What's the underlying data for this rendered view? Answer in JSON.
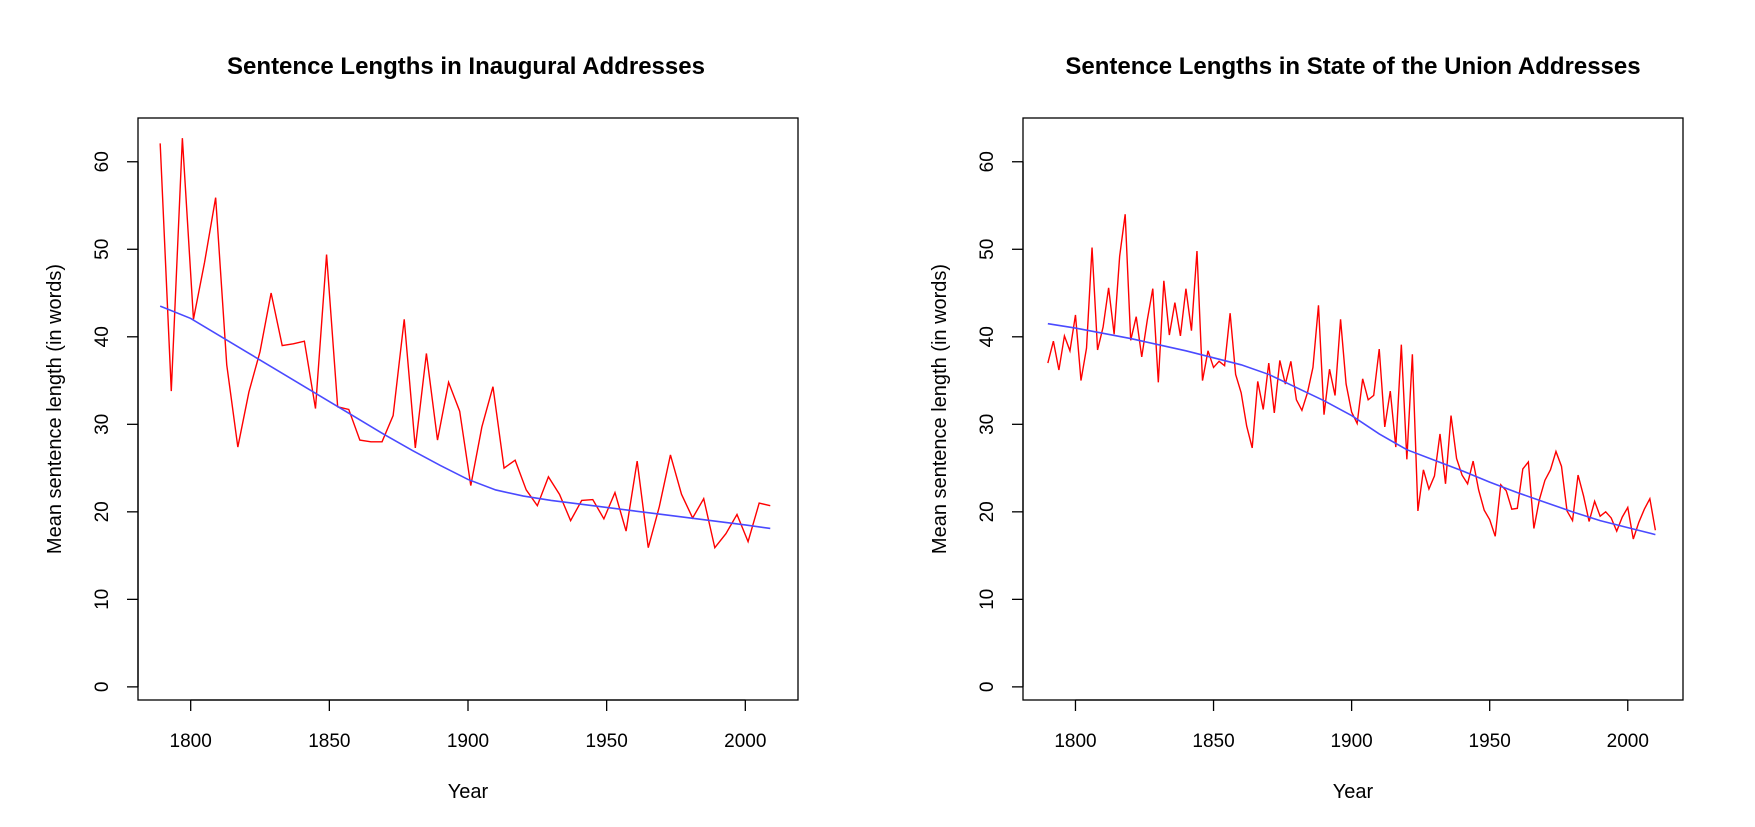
{
  "chart_data": [
    {
      "type": "line",
      "title": "Sentence Lengths in Inaugural Addresses",
      "xlabel": "Year",
      "ylabel": "Mean sentence length (in words)",
      "xlim": [
        1781,
        2019
      ],
      "ylim": [
        -1.5,
        65
      ],
      "xticks": [
        1800,
        1850,
        1900,
        1950,
        2000
      ],
      "yticks": [
        0,
        10,
        20,
        30,
        40,
        50,
        60
      ],
      "grid": false,
      "colors": {
        "raw": "#ff0000",
        "smooth": "#4a4aff"
      },
      "series": [
        {
          "style": "raw",
          "x": [
            1789,
            1793,
            1797,
            1801,
            1805,
            1809,
            1813,
            1817,
            1821,
            1825,
            1829,
            1833,
            1837,
            1841,
            1845,
            1849,
            1853,
            1857,
            1861,
            1865,
            1869,
            1873,
            1877,
            1881,
            1885,
            1889,
            1893,
            1897,
            1901,
            1905,
            1909,
            1913,
            1917,
            1921,
            1925,
            1929,
            1933,
            1937,
            1941,
            1945,
            1949,
            1953,
            1957,
            1961,
            1965,
            1969,
            1973,
            1977,
            1981,
            1985,
            1989,
            1993,
            1997,
            2001,
            2005,
            2009
          ],
          "y": [
            62.1,
            33.8,
            62.7,
            42.0,
            48.5,
            55.9,
            36.8,
            27.4,
            33.7,
            38.3,
            45.0,
            39.0,
            39.2,
            39.5,
            31.8,
            49.4,
            32.0,
            31.7,
            28.2,
            28.0,
            28.0,
            31.0,
            42.0,
            27.3,
            38.1,
            28.2,
            34.8,
            31.5,
            23.0,
            29.7,
            34.3,
            25.0,
            25.9,
            22.5,
            20.7,
            24.0,
            22.0,
            19.0,
            21.3,
            21.4,
            19.2,
            22.2,
            17.8,
            25.8,
            15.9,
            20.6,
            26.5,
            22.0,
            19.3,
            21.5,
            15.9,
            17.5,
            19.7,
            16.6,
            21.0,
            20.7
          ]
        },
        {
          "style": "smooth",
          "x": [
            1789,
            1800,
            1810,
            1820,
            1830,
            1840,
            1850,
            1860,
            1870,
            1880,
            1890,
            1900,
            1910,
            1920,
            1930,
            1940,
            1950,
            1960,
            1970,
            1980,
            1990,
            2000,
            2009
          ],
          "y": [
            43.5,
            42.1,
            40.2,
            38.3,
            36.4,
            34.5,
            32.6,
            30.7,
            28.8,
            27.0,
            25.3,
            23.7,
            22.5,
            21.8,
            21.3,
            20.9,
            20.5,
            20.1,
            19.7,
            19.3,
            18.9,
            18.5,
            18.1
          ]
        }
      ]
    },
    {
      "type": "line",
      "title": "Sentence Lengths in State of the Union Addresses",
      "xlabel": "Year",
      "ylabel": "Mean sentence length (in words)",
      "xlim": [
        1781,
        2020
      ],
      "ylim": [
        -1.5,
        65
      ],
      "xticks": [
        1800,
        1850,
        1900,
        1950,
        2000
      ],
      "yticks": [
        0,
        10,
        20,
        30,
        40,
        50,
        60
      ],
      "grid": false,
      "colors": {
        "raw": "#ff0000",
        "smooth": "#4a4aff"
      },
      "series": [
        {
          "style": "raw",
          "x": [
            1790,
            1792,
            1794,
            1796,
            1798,
            1800,
            1802,
            1804,
            1806,
            1808,
            1810,
            1812,
            1814,
            1816,
            1818,
            1820,
            1822,
            1824,
            1826,
            1828,
            1830,
            1832,
            1834,
            1836,
            1838,
            1840,
            1842,
            1844,
            1846,
            1848,
            1850,
            1852,
            1854,
            1856,
            1858,
            1860,
            1862,
            1864,
            1866,
            1868,
            1870,
            1872,
            1874,
            1876,
            1878,
            1880,
            1882,
            1884,
            1886,
            1888,
            1890,
            1892,
            1894,
            1896,
            1898,
            1900,
            1902,
            1904,
            1906,
            1908,
            1910,
            1912,
            1914,
            1916,
            1918,
            1920,
            1922,
            1924,
            1926,
            1928,
            1930,
            1932,
            1934,
            1936,
            1938,
            1940,
            1942,
            1944,
            1946,
            1948,
            1950,
            1952,
            1954,
            1956,
            1958,
            1960,
            1962,
            1964,
            1966,
            1968,
            1970,
            1972,
            1974,
            1976,
            1978,
            1980,
            1982,
            1984,
            1986,
            1988,
            1990,
            1992,
            1994,
            1996,
            1998,
            2000,
            2002,
            2004,
            2006,
            2008,
            2010
          ],
          "y": [
            37.0,
            39.5,
            36.2,
            40.1,
            38.4,
            42.5,
            35.0,
            38.7,
            50.2,
            38.5,
            41.1,
            45.6,
            40.3,
            49.2,
            54.0,
            39.6,
            42.3,
            37.7,
            41.9,
            45.5,
            34.8,
            46.4,
            40.2,
            43.9,
            40.1,
            45.5,
            40.7,
            49.8,
            35.0,
            38.4,
            36.5,
            37.2,
            36.7,
            42.7,
            35.7,
            33.6,
            29.8,
            27.3,
            34.9,
            31.7,
            37.0,
            31.3,
            37.3,
            34.6,
            37.2,
            32.8,
            31.6,
            33.6,
            36.5,
            43.6,
            31.1,
            36.3,
            33.3,
            42.0,
            34.6,
            31.4,
            30.1,
            35.2,
            32.8,
            33.3,
            38.6,
            29.7,
            33.8,
            27.4,
            39.1,
            26.0,
            38.0,
            20.1,
            24.8,
            22.6,
            24.1,
            28.9,
            23.2,
            31.0,
            26.1,
            24.2,
            23.2,
            25.8,
            22.5,
            20.2,
            19.1,
            17.2,
            23.1,
            22.4,
            20.3,
            20.4,
            24.9,
            25.7,
            18.1,
            21.4,
            23.6,
            24.8,
            26.9,
            25.2,
            20.1,
            19.0,
            24.2,
            21.8,
            18.9,
            21.2,
            19.5,
            20.0,
            19.3,
            17.8,
            19.4,
            20.5,
            16.9,
            18.8,
            20.3,
            21.5,
            17.9
          ]
        },
        {
          "style": "smooth",
          "x": [
            1790,
            1800,
            1810,
            1820,
            1830,
            1840,
            1850,
            1860,
            1870,
            1880,
            1890,
            1900,
            1910,
            1920,
            1930,
            1940,
            1950,
            1960,
            1970,
            1980,
            1990,
            2000,
            2010
          ],
          "y": [
            41.5,
            41.0,
            40.4,
            39.8,
            39.1,
            38.4,
            37.6,
            36.8,
            35.7,
            34.2,
            32.7,
            31.0,
            28.9,
            27.1,
            25.9,
            24.7,
            23.4,
            22.2,
            21.1,
            20.0,
            19.0,
            18.2,
            17.4
          ]
        }
      ]
    }
  ]
}
